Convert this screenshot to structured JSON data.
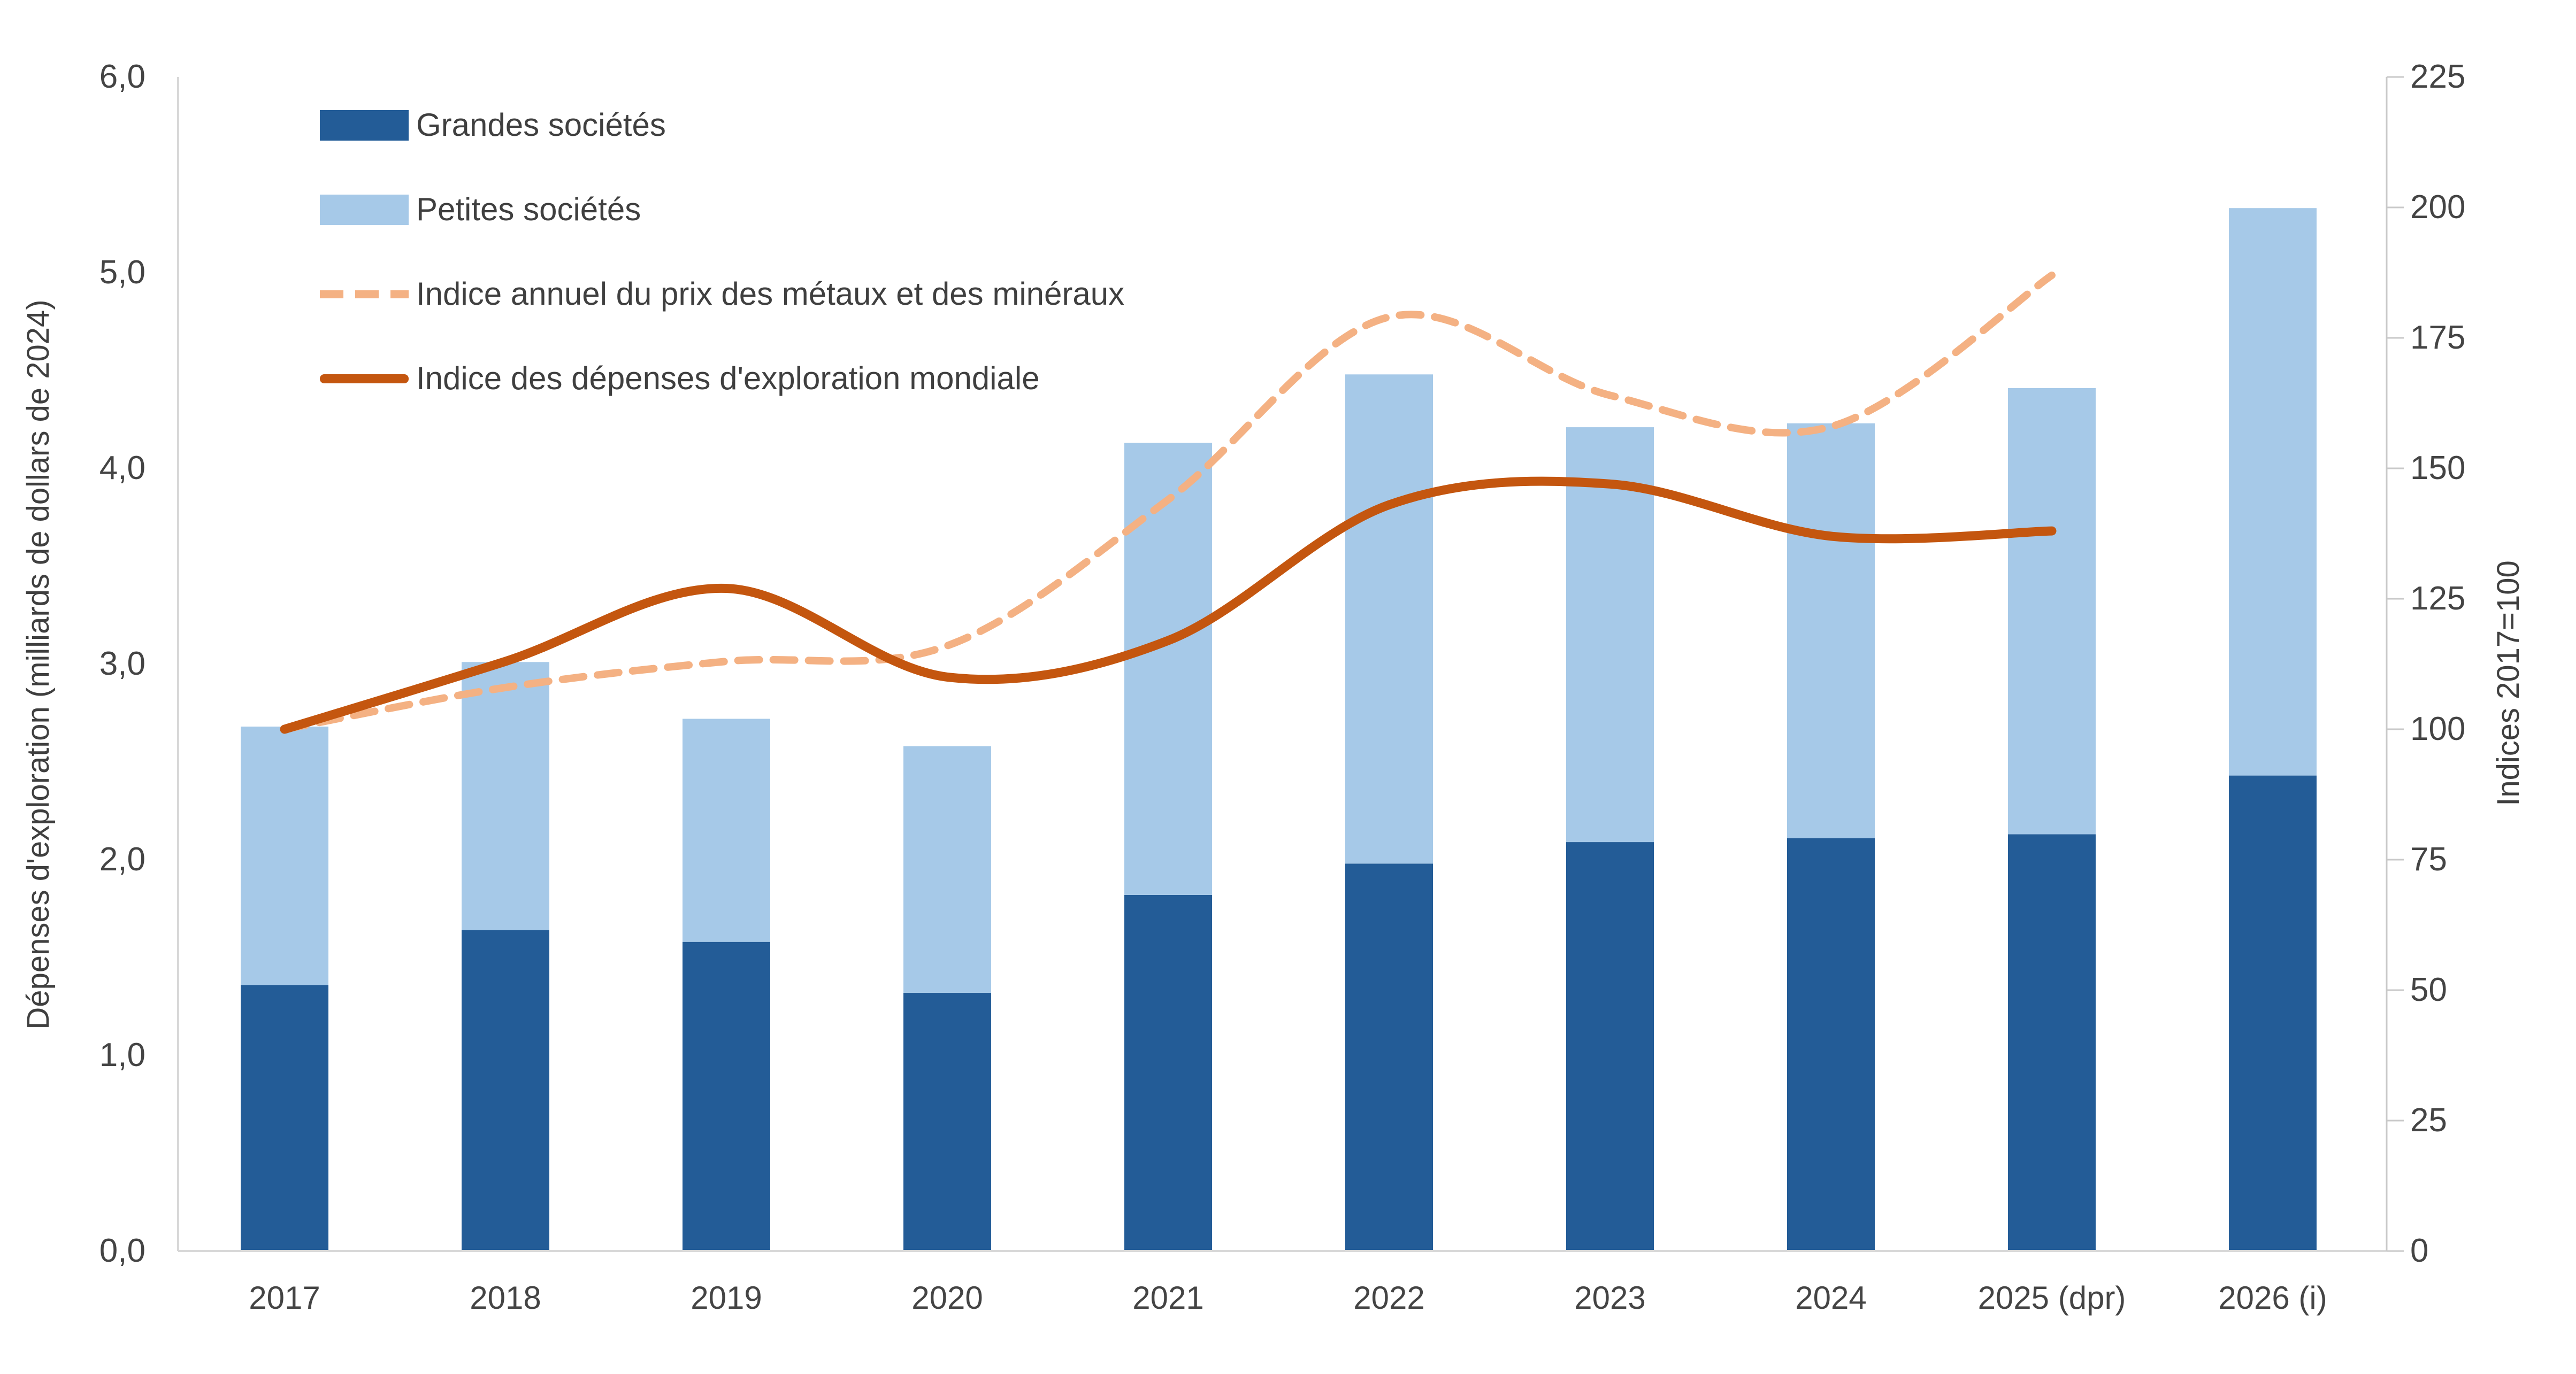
{
  "chart_data": {
    "type": "bar",
    "subtype": "stacked-bars-with-lines-combo",
    "title": "",
    "categories": [
      "2017",
      "2018",
      "2019",
      "2020",
      "2021",
      "2022",
      "2023",
      "2024",
      "2025 (dpr)",
      "2026 (i)"
    ],
    "series": [
      {
        "name": "Grandes sociétés",
        "type": "bar-stacked",
        "axis": "left",
        "color": "#235C97",
        "values": [
          1.36,
          1.64,
          1.58,
          1.32,
          1.82,
          1.98,
          2.09,
          2.11,
          2.13,
          2.43
        ]
      },
      {
        "name": "Petites sociétés",
        "type": "bar-stacked",
        "axis": "left",
        "color": "#A6C9E8",
        "values": [
          1.32,
          1.37,
          1.14,
          1.26,
          2.31,
          2.5,
          2.12,
          2.12,
          2.28,
          2.9
        ]
      },
      {
        "name": "Indice annuel du prix des métaux et des minéraux",
        "type": "line-dashed-smooth",
        "axis": "right",
        "color": "#F4B183",
        "values": [
          100,
          108,
          113,
          116,
          144,
          179,
          164,
          158,
          187
        ]
      },
      {
        "name": "Indice des dépenses d'exploration mondiale",
        "type": "line-solid-smooth",
        "axis": "right",
        "color": "#C4560F",
        "values": [
          100,
          113,
          127,
          110,
          117,
          143,
          147,
          137,
          138
        ]
      }
    ],
    "bar_totals": [
      2.68,
      3.01,
      2.72,
      2.58,
      4.13,
      4.48,
      4.21,
      4.23,
      4.41,
      5.33
    ],
    "ylabel_left": "Dépenses d'exploration (milliards de dollars de 2024)",
    "ylabel_right": "Indices 2017=100",
    "xlabel": "",
    "y_left_range": [
      0,
      6
    ],
    "y_left_tick_labels": [
      "0,0",
      "1,0",
      "2,0",
      "3,0",
      "4,0",
      "5,0",
      "6,0"
    ],
    "y_right_range": [
      0,
      225
    ],
    "y_right_tick_step": 25,
    "y_right_tick_labels": [
      "0",
      "25",
      "50",
      "75",
      "100",
      "125",
      "150",
      "175",
      "200",
      "225"
    ],
    "legend_position": "top-left-inside",
    "grid": false
  },
  "colors": {
    "background": "#FFFFFF",
    "text": "#444444",
    "axis_line": "#D8D8D8",
    "tick_mark": "#C9C9C9"
  }
}
